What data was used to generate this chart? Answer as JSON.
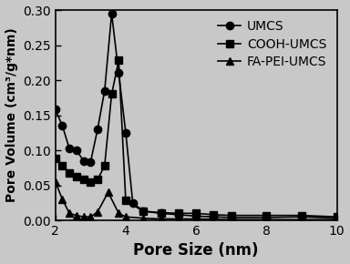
{
  "title": "",
  "xlabel": "Pore Size (nm)",
  "ylabel": "Pore Volume (cm³/g*nm)",
  "xlim": [
    2,
    10
  ],
  "ylim": [
    0,
    0.3
  ],
  "yticks": [
    0.0,
    0.05,
    0.1,
    0.15,
    0.2,
    0.25,
    0.3
  ],
  "xticks": [
    2,
    4,
    6,
    8,
    10
  ],
  "background_color": "#c8c8c8",
  "plot_bg_color": "#c8c8c8",
  "series": [
    {
      "label": "UMCS",
      "marker": "o",
      "color": "#000000",
      "x": [
        2.0,
        2.2,
        2.4,
        2.6,
        2.8,
        3.0,
        3.2,
        3.4,
        3.6,
        3.8,
        4.0,
        4.2,
        4.5,
        5.0,
        5.5,
        6.0,
        6.5,
        7.0,
        8.0,
        9.0,
        10.0
      ],
      "y": [
        0.158,
        0.135,
        0.102,
        0.1,
        0.085,
        0.083,
        0.13,
        0.185,
        0.295,
        0.21,
        0.125,
        0.025,
        0.013,
        0.01,
        0.008,
        0.006,
        0.005,
        0.004,
        0.004,
        0.005,
        0.003
      ]
    },
    {
      "label": "COOH-UMCS",
      "marker": "s",
      "color": "#000000",
      "x": [
        2.0,
        2.2,
        2.4,
        2.6,
        2.8,
        3.0,
        3.2,
        3.4,
        3.6,
        3.8,
        4.0,
        4.5,
        5.0,
        5.5,
        6.0,
        6.5,
        7.0,
        8.0,
        9.0,
        10.0
      ],
      "y": [
        0.088,
        0.078,
        0.068,
        0.062,
        0.058,
        0.055,
        0.058,
        0.078,
        0.18,
        0.228,
        0.028,
        0.013,
        0.011,
        0.01,
        0.01,
        0.008,
        0.007,
        0.007,
        0.007,
        0.005
      ]
    },
    {
      "label": "FA-PEI-UMCS",
      "marker": "^",
      "color": "#000000",
      "x": [
        2.0,
        2.2,
        2.4,
        2.6,
        2.8,
        3.0,
        3.2,
        3.5,
        3.8,
        4.0,
        4.5,
        5.0,
        5.5,
        6.0,
        7.0,
        8.0,
        9.0,
        10.0
      ],
      "y": [
        0.055,
        0.03,
        0.01,
        0.007,
        0.005,
        0.005,
        0.012,
        0.04,
        0.01,
        0.005,
        0.003,
        0.002,
        0.002,
        0.002,
        0.001,
        0.001,
        0.001,
        0.001
      ]
    }
  ],
  "legend_fontsize": 10,
  "xlabel_fontsize": 12,
  "ylabel_fontsize": 10,
  "tick_fontsize": 10,
  "markersize": 6,
  "linewidth": 1.2
}
